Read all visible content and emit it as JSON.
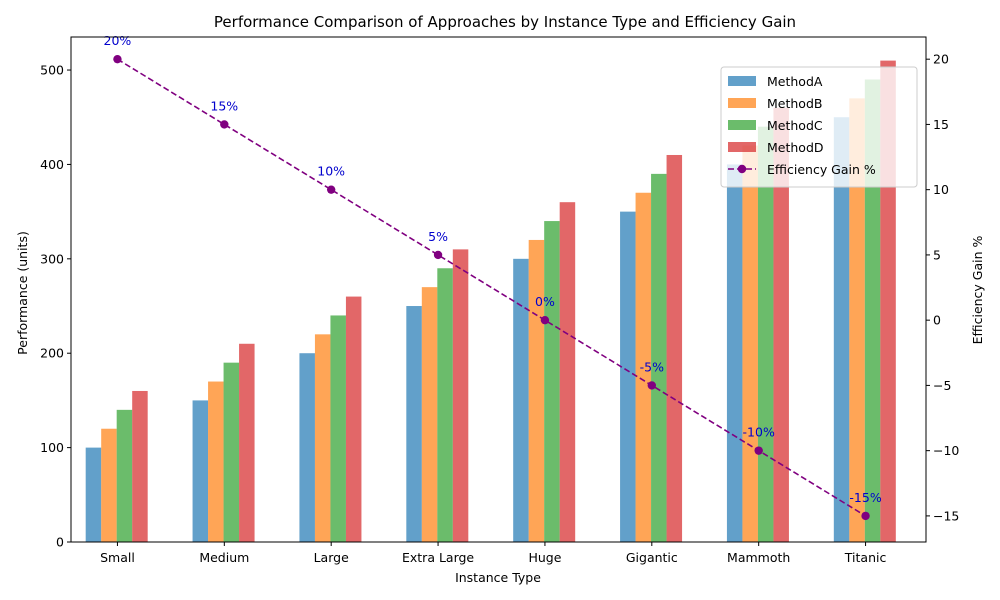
{
  "chart_data": {
    "type": "bar",
    "title": "Performance Comparison of Approaches by Instance Type and Efficiency Gain",
    "xlabel": "Instance Type",
    "ylabel": "Performance (units)",
    "y2label": "Efficiency Gain %",
    "categories": [
      "Small",
      "Medium",
      "Large",
      "Extra Large",
      "Huge",
      "Gigantic",
      "Mammoth",
      "Titanic"
    ],
    "series": [
      {
        "name": "MethodA",
        "color": "#1f77b4",
        "values": [
          100,
          150,
          200,
          250,
          300,
          350,
          400,
          450
        ]
      },
      {
        "name": "MethodB",
        "color": "#ff7f0e",
        "values": [
          120,
          170,
          220,
          270,
          320,
          370,
          420,
          470
        ]
      },
      {
        "name": "MethodC",
        "color": "#2ca02c",
        "values": [
          140,
          190,
          240,
          290,
          340,
          390,
          440,
          490
        ]
      },
      {
        "name": "MethodD",
        "color": "#d62728",
        "values": [
          160,
          210,
          260,
          310,
          360,
          410,
          460,
          510
        ]
      }
    ],
    "line_series": {
      "name": "Efficiency Gain %",
      "color": "#800080",
      "values": [
        20,
        15,
        10,
        5,
        0,
        -5,
        -10,
        -15
      ],
      "labels": [
        "20%",
        "15%",
        "10%",
        "5%",
        "0%",
        "-5%",
        "-10%",
        "-15%"
      ],
      "label_color": "#0000cd"
    },
    "ylim": [
      0,
      535
    ],
    "yticks": [
      0,
      100,
      200,
      300,
      400,
      500
    ],
    "y2lim": [
      -17,
      21.7
    ],
    "y2ticks": [
      -15,
      -10,
      -5,
      0,
      5,
      10,
      15,
      20
    ],
    "legend_position": "top-right",
    "grid": false
  }
}
